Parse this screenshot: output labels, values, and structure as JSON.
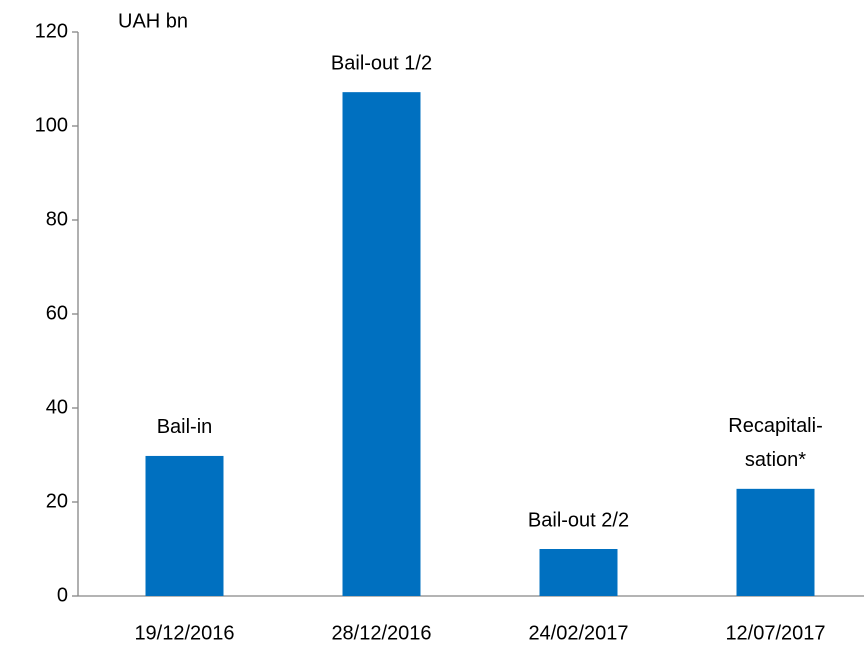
{
  "chart_data": {
    "type": "bar",
    "unit_label": "UAH bn",
    "categories": [
      "19/12/2016",
      "28/12/2016",
      "24/02/2017",
      "12/07/2017"
    ],
    "values": [
      29.8,
      107.2,
      10,
      22.8
    ],
    "bar_labels": [
      [
        "Bail-in"
      ],
      [
        "Bail-out 1/2"
      ],
      [
        "Bail-out 2/2"
      ],
      [
        "Recapitali-",
        "sation*"
      ]
    ],
    "color": "#0070c0",
    "ylim": [
      0,
      120
    ],
    "yticks": [
      0,
      20,
      40,
      60,
      80,
      100,
      120
    ],
    "grid": false
  }
}
